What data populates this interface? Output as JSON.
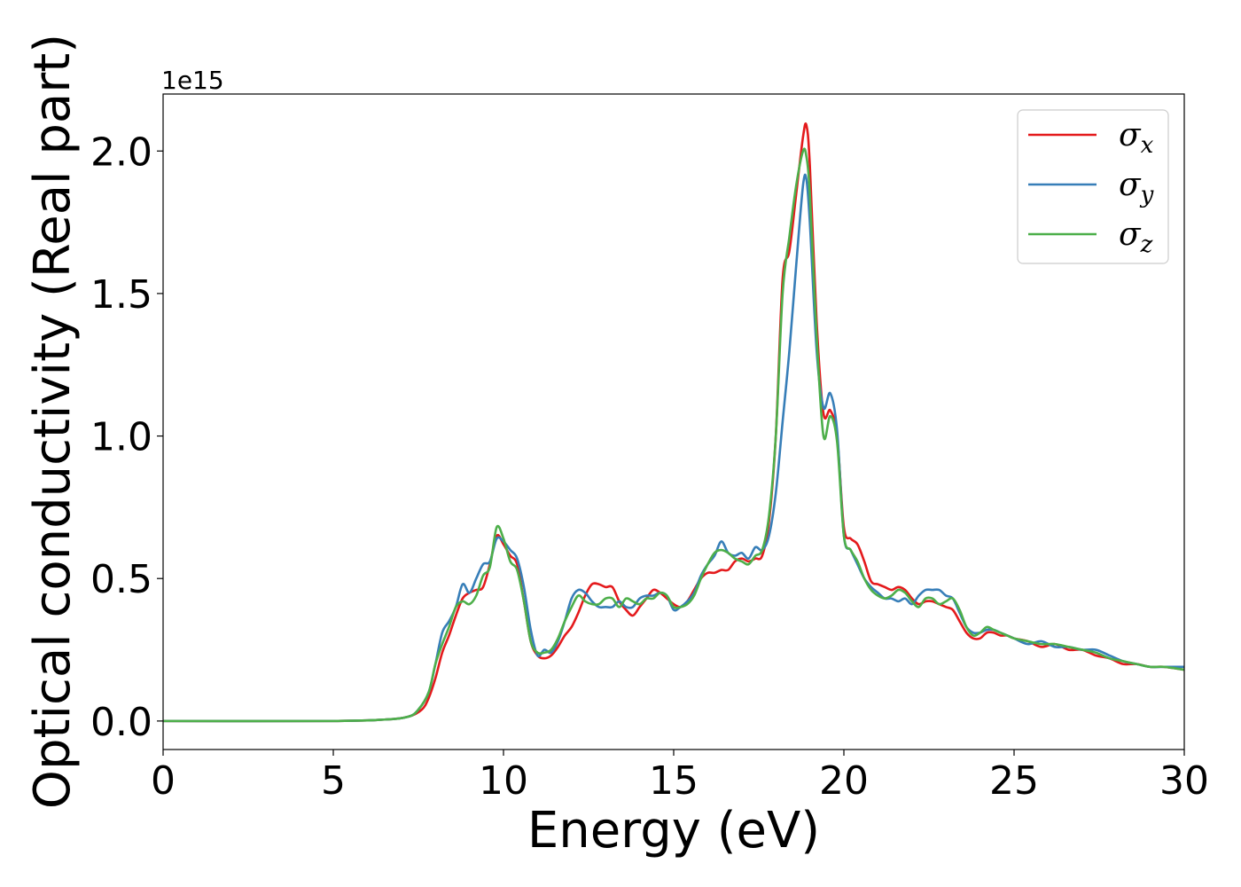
{
  "chart_data": {
    "type": "line",
    "xlabel": "Energy (eV)",
    "ylabel": "Optical conductivity (Real part)",
    "y_offset_label": "1e15",
    "xlim": [
      0,
      30
    ],
    "ylim": [
      -0.1,
      2.2
    ],
    "x_ticks": [
      0,
      5,
      10,
      15,
      20,
      25,
      30
    ],
    "x_tick_labels": [
      "0",
      "5",
      "10",
      "15",
      "20",
      "25",
      "30"
    ],
    "y_ticks": [
      0.0,
      0.5,
      1.0,
      1.5,
      2.0
    ],
    "y_tick_labels": [
      "0.0",
      "0.5",
      "1.0",
      "1.5",
      "2.0"
    ],
    "grid": false,
    "legend_position": "top-right",
    "series": [
      {
        "name": "σ_x",
        "legend_main": "σ",
        "legend_sub": "x",
        "color": "#e41a1c",
        "points": [
          [
            0,
            0
          ],
          [
            5,
            0
          ],
          [
            6.5,
            0.005
          ],
          [
            7.2,
            0.015
          ],
          [
            7.6,
            0.04
          ],
          [
            7.8,
            0.08
          ],
          [
            8.0,
            0.15
          ],
          [
            8.2,
            0.24
          ],
          [
            8.4,
            0.3
          ],
          [
            8.6,
            0.37
          ],
          [
            8.8,
            0.43
          ],
          [
            9.0,
            0.45
          ],
          [
            9.2,
            0.46
          ],
          [
            9.4,
            0.47
          ],
          [
            9.6,
            0.55
          ],
          [
            9.8,
            0.65
          ],
          [
            10.0,
            0.62
          ],
          [
            10.2,
            0.58
          ],
          [
            10.4,
            0.55
          ],
          [
            10.6,
            0.42
          ],
          [
            10.8,
            0.28
          ],
          [
            11.0,
            0.23
          ],
          [
            11.2,
            0.22
          ],
          [
            11.4,
            0.23
          ],
          [
            11.6,
            0.26
          ],
          [
            11.8,
            0.3
          ],
          [
            12.0,
            0.33
          ],
          [
            12.2,
            0.38
          ],
          [
            12.4,
            0.44
          ],
          [
            12.6,
            0.48
          ],
          [
            12.8,
            0.48
          ],
          [
            13.0,
            0.47
          ],
          [
            13.2,
            0.47
          ],
          [
            13.4,
            0.42
          ],
          [
            13.6,
            0.39
          ],
          [
            13.8,
            0.37
          ],
          [
            14.0,
            0.4
          ],
          [
            14.2,
            0.43
          ],
          [
            14.4,
            0.46
          ],
          [
            14.6,
            0.45
          ],
          [
            14.8,
            0.43
          ],
          [
            15.0,
            0.41
          ],
          [
            15.2,
            0.4
          ],
          [
            15.4,
            0.42
          ],
          [
            15.6,
            0.46
          ],
          [
            15.8,
            0.5
          ],
          [
            16.0,
            0.52
          ],
          [
            16.2,
            0.52
          ],
          [
            16.4,
            0.53
          ],
          [
            16.6,
            0.53
          ],
          [
            16.8,
            0.56
          ],
          [
            17.0,
            0.57
          ],
          [
            17.2,
            0.56
          ],
          [
            17.4,
            0.57
          ],
          [
            17.6,
            0.58
          ],
          [
            17.8,
            0.7
          ],
          [
            18.0,
            1.0
          ],
          [
            18.2,
            1.55
          ],
          [
            18.4,
            1.65
          ],
          [
            18.6,
            1.85
          ],
          [
            18.8,
            2.05
          ],
          [
            18.9,
            2.09
          ],
          [
            19.0,
            1.95
          ],
          [
            19.2,
            1.4
          ],
          [
            19.4,
            1.08
          ],
          [
            19.6,
            1.09
          ],
          [
            19.8,
            1.0
          ],
          [
            20.0,
            0.68
          ],
          [
            20.2,
            0.64
          ],
          [
            20.4,
            0.62
          ],
          [
            20.6,
            0.56
          ],
          [
            20.8,
            0.49
          ],
          [
            21.0,
            0.48
          ],
          [
            21.2,
            0.47
          ],
          [
            21.4,
            0.46
          ],
          [
            21.6,
            0.47
          ],
          [
            21.8,
            0.46
          ],
          [
            22.0,
            0.43
          ],
          [
            22.2,
            0.41
          ],
          [
            22.4,
            0.42
          ],
          [
            22.6,
            0.42
          ],
          [
            22.8,
            0.41
          ],
          [
            23.0,
            0.4
          ],
          [
            23.2,
            0.39
          ],
          [
            23.4,
            0.35
          ],
          [
            23.6,
            0.31
          ],
          [
            23.8,
            0.29
          ],
          [
            24.0,
            0.29
          ],
          [
            24.2,
            0.31
          ],
          [
            24.4,
            0.31
          ],
          [
            24.6,
            0.3
          ],
          [
            24.8,
            0.3
          ],
          [
            25.0,
            0.29
          ],
          [
            25.4,
            0.28
          ],
          [
            25.8,
            0.26
          ],
          [
            26.2,
            0.27
          ],
          [
            26.6,
            0.25
          ],
          [
            27.0,
            0.25
          ],
          [
            27.4,
            0.23
          ],
          [
            27.8,
            0.22
          ],
          [
            28.2,
            0.2
          ],
          [
            28.6,
            0.2
          ],
          [
            29.0,
            0.19
          ],
          [
            29.4,
            0.19
          ],
          [
            30.0,
            0.18
          ]
        ]
      },
      {
        "name": "σ_y",
        "legend_main": "σ",
        "legend_sub": "y",
        "color": "#377eb8",
        "points": [
          [
            0,
            0
          ],
          [
            5,
            0
          ],
          [
            6.5,
            0.005
          ],
          [
            7.2,
            0.015
          ],
          [
            7.5,
            0.04
          ],
          [
            7.8,
            0.1
          ],
          [
            8.0,
            0.2
          ],
          [
            8.2,
            0.31
          ],
          [
            8.4,
            0.35
          ],
          [
            8.6,
            0.4
          ],
          [
            8.8,
            0.48
          ],
          [
            9.0,
            0.45
          ],
          [
            9.2,
            0.5
          ],
          [
            9.4,
            0.55
          ],
          [
            9.6,
            0.56
          ],
          [
            9.8,
            0.64
          ],
          [
            10.0,
            0.63
          ],
          [
            10.2,
            0.6
          ],
          [
            10.4,
            0.57
          ],
          [
            10.6,
            0.47
          ],
          [
            10.8,
            0.32
          ],
          [
            11.0,
            0.23
          ],
          [
            11.2,
            0.25
          ],
          [
            11.4,
            0.24
          ],
          [
            11.6,
            0.28
          ],
          [
            11.8,
            0.35
          ],
          [
            12.0,
            0.43
          ],
          [
            12.2,
            0.46
          ],
          [
            12.4,
            0.45
          ],
          [
            12.6,
            0.42
          ],
          [
            12.8,
            0.4
          ],
          [
            13.0,
            0.4
          ],
          [
            13.2,
            0.4
          ],
          [
            13.4,
            0.42
          ],
          [
            13.6,
            0.4
          ],
          [
            13.8,
            0.4
          ],
          [
            14.0,
            0.43
          ],
          [
            14.2,
            0.44
          ],
          [
            14.4,
            0.44
          ],
          [
            14.6,
            0.45
          ],
          [
            14.8,
            0.44
          ],
          [
            15.0,
            0.39
          ],
          [
            15.2,
            0.4
          ],
          [
            15.4,
            0.42
          ],
          [
            15.6,
            0.45
          ],
          [
            15.8,
            0.51
          ],
          [
            16.0,
            0.55
          ],
          [
            16.2,
            0.58
          ],
          [
            16.4,
            0.63
          ],
          [
            16.6,
            0.59
          ],
          [
            16.8,
            0.58
          ],
          [
            17.0,
            0.59
          ],
          [
            17.2,
            0.57
          ],
          [
            17.4,
            0.61
          ],
          [
            17.6,
            0.6
          ],
          [
            17.8,
            0.65
          ],
          [
            18.0,
            0.8
          ],
          [
            18.2,
            1.05
          ],
          [
            18.4,
            1.3
          ],
          [
            18.6,
            1.6
          ],
          [
            18.8,
            1.88
          ],
          [
            18.9,
            1.9
          ],
          [
            19.0,
            1.75
          ],
          [
            19.2,
            1.3
          ],
          [
            19.4,
            1.1
          ],
          [
            19.6,
            1.15
          ],
          [
            19.8,
            1.02
          ],
          [
            20.0,
            0.65
          ],
          [
            20.2,
            0.6
          ],
          [
            20.4,
            0.55
          ],
          [
            20.6,
            0.5
          ],
          [
            20.8,
            0.47
          ],
          [
            21.0,
            0.45
          ],
          [
            21.2,
            0.43
          ],
          [
            21.4,
            0.43
          ],
          [
            21.6,
            0.42
          ],
          [
            21.8,
            0.43
          ],
          [
            22.0,
            0.41
          ],
          [
            22.2,
            0.44
          ],
          [
            22.4,
            0.46
          ],
          [
            22.6,
            0.46
          ],
          [
            22.8,
            0.46
          ],
          [
            23.0,
            0.44
          ],
          [
            23.2,
            0.43
          ],
          [
            23.4,
            0.38
          ],
          [
            23.6,
            0.33
          ],
          [
            23.8,
            0.31
          ],
          [
            24.0,
            0.31
          ],
          [
            24.2,
            0.32
          ],
          [
            24.4,
            0.32
          ],
          [
            24.6,
            0.31
          ],
          [
            24.8,
            0.3
          ],
          [
            25.0,
            0.29
          ],
          [
            25.4,
            0.27
          ],
          [
            25.8,
            0.28
          ],
          [
            26.2,
            0.26
          ],
          [
            26.6,
            0.26
          ],
          [
            27.0,
            0.25
          ],
          [
            27.4,
            0.25
          ],
          [
            27.8,
            0.23
          ],
          [
            28.2,
            0.21
          ],
          [
            28.6,
            0.2
          ],
          [
            29.0,
            0.19
          ],
          [
            29.4,
            0.19
          ],
          [
            30.0,
            0.19
          ]
        ]
      },
      {
        "name": "σ_z",
        "legend_main": "σ",
        "legend_sub": "z",
        "color": "#4daf4a",
        "points": [
          [
            0,
            0
          ],
          [
            5,
            0
          ],
          [
            6.5,
            0.005
          ],
          [
            7.2,
            0.015
          ],
          [
            7.5,
            0.04
          ],
          [
            7.8,
            0.1
          ],
          [
            8.0,
            0.2
          ],
          [
            8.2,
            0.27
          ],
          [
            8.4,
            0.33
          ],
          [
            8.6,
            0.4
          ],
          [
            8.8,
            0.42
          ],
          [
            9.0,
            0.41
          ],
          [
            9.2,
            0.44
          ],
          [
            9.4,
            0.51
          ],
          [
            9.6,
            0.54
          ],
          [
            9.8,
            0.68
          ],
          [
            10.0,
            0.64
          ],
          [
            10.2,
            0.56
          ],
          [
            10.4,
            0.53
          ],
          [
            10.6,
            0.42
          ],
          [
            10.8,
            0.28
          ],
          [
            11.0,
            0.24
          ],
          [
            11.2,
            0.24
          ],
          [
            11.4,
            0.25
          ],
          [
            11.6,
            0.29
          ],
          [
            11.8,
            0.35
          ],
          [
            12.0,
            0.4
          ],
          [
            12.2,
            0.44
          ],
          [
            12.4,
            0.42
          ],
          [
            12.6,
            0.41
          ],
          [
            12.8,
            0.41
          ],
          [
            13.0,
            0.43
          ],
          [
            13.2,
            0.43
          ],
          [
            13.4,
            0.4
          ],
          [
            13.6,
            0.43
          ],
          [
            13.8,
            0.42
          ],
          [
            14.0,
            0.41
          ],
          [
            14.2,
            0.43
          ],
          [
            14.4,
            0.43
          ],
          [
            14.6,
            0.45
          ],
          [
            14.8,
            0.44
          ],
          [
            15.0,
            0.4
          ],
          [
            15.2,
            0.4
          ],
          [
            15.4,
            0.41
          ],
          [
            15.6,
            0.44
          ],
          [
            15.8,
            0.5
          ],
          [
            16.0,
            0.55
          ],
          [
            16.2,
            0.59
          ],
          [
            16.4,
            0.6
          ],
          [
            16.6,
            0.59
          ],
          [
            16.8,
            0.57
          ],
          [
            17.0,
            0.56
          ],
          [
            17.2,
            0.55
          ],
          [
            17.4,
            0.58
          ],
          [
            17.6,
            0.6
          ],
          [
            17.8,
            0.72
          ],
          [
            18.0,
            1.0
          ],
          [
            18.2,
            1.5
          ],
          [
            18.4,
            1.7
          ],
          [
            18.6,
            1.88
          ],
          [
            18.8,
            2.0
          ],
          [
            18.9,
            1.98
          ],
          [
            19.0,
            1.85
          ],
          [
            19.2,
            1.35
          ],
          [
            19.4,
            1.0
          ],
          [
            19.6,
            1.07
          ],
          [
            19.8,
            0.98
          ],
          [
            20.0,
            0.65
          ],
          [
            20.2,
            0.6
          ],
          [
            20.4,
            0.56
          ],
          [
            20.6,
            0.5
          ],
          [
            20.8,
            0.46
          ],
          [
            21.0,
            0.44
          ],
          [
            21.2,
            0.43
          ],
          [
            21.4,
            0.44
          ],
          [
            21.6,
            0.46
          ],
          [
            21.8,
            0.45
          ],
          [
            22.0,
            0.42
          ],
          [
            22.2,
            0.4
          ],
          [
            22.4,
            0.43
          ],
          [
            22.6,
            0.43
          ],
          [
            22.8,
            0.41
          ],
          [
            23.0,
            0.42
          ],
          [
            23.2,
            0.43
          ],
          [
            23.4,
            0.39
          ],
          [
            23.6,
            0.33
          ],
          [
            23.8,
            0.3
          ],
          [
            24.0,
            0.31
          ],
          [
            24.2,
            0.33
          ],
          [
            24.4,
            0.32
          ],
          [
            24.6,
            0.31
          ],
          [
            24.8,
            0.3
          ],
          [
            25.0,
            0.29
          ],
          [
            25.4,
            0.28
          ],
          [
            25.8,
            0.27
          ],
          [
            26.2,
            0.27
          ],
          [
            26.6,
            0.26
          ],
          [
            27.0,
            0.25
          ],
          [
            27.4,
            0.24
          ],
          [
            27.8,
            0.22
          ],
          [
            28.2,
            0.21
          ],
          [
            28.6,
            0.2
          ],
          [
            29.0,
            0.19
          ],
          [
            29.4,
            0.19
          ],
          [
            30.0,
            0.18
          ]
        ]
      }
    ]
  }
}
